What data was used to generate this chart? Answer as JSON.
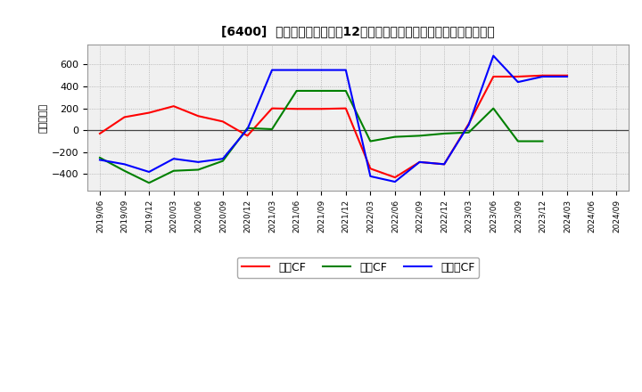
{
  "title": "[6400]  キャッシュフローの12か月移動合計の対前年同期増減額の推移",
  "ylabel": "（百万円）",
  "background_color": "#ffffff",
  "grid_color": "#aaaaaa",
  "plot_bg_color": "#f0f0f0",
  "dates": [
    "2019/06",
    "2019/09",
    "2019/12",
    "2020/03",
    "2020/06",
    "2020/09",
    "2020/12",
    "2021/03",
    "2021/06",
    "2021/09",
    "2021/12",
    "2022/03",
    "2022/06",
    "2022/09",
    "2022/12",
    "2023/03",
    "2023/06",
    "2023/09",
    "2023/12",
    "2024/03",
    "2024/06",
    "2024/09"
  ],
  "eigyo_cf": [
    -30,
    120,
    160,
    220,
    130,
    80,
    -50,
    200,
    195,
    195,
    200,
    -350,
    -430,
    -290,
    -310,
    60,
    490,
    490,
    500,
    500,
    null,
    null
  ],
  "toshi_cf": [
    -250,
    -370,
    -480,
    -370,
    -360,
    -280,
    20,
    10,
    360,
    360,
    360,
    -100,
    -60,
    -50,
    -30,
    -20,
    200,
    -100,
    -100,
    null,
    null,
    null
  ],
  "free_cf": [
    -270,
    -310,
    -380,
    -260,
    -290,
    -260,
    10,
    550,
    550,
    550,
    550,
    -420,
    -470,
    -290,
    -310,
    50,
    680,
    440,
    490,
    490,
    null,
    null
  ],
  "series_colors": {
    "eigyo": "#ff0000",
    "toshi": "#008000",
    "free": "#0000ff"
  },
  "ylim": [
    -550,
    780
  ],
  "yticks": [
    -400,
    -200,
    0,
    200,
    400,
    600
  ],
  "legend_labels": [
    "営業CF",
    "投資CF",
    "フリーCF"
  ]
}
